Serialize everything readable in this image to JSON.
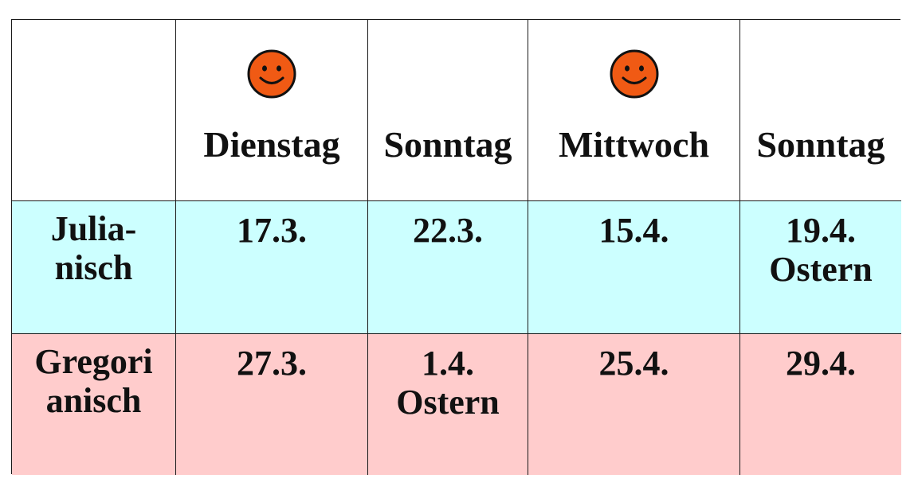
{
  "colors": {
    "julian_row": "#ccffff",
    "gregorian_row": "#ffcccc",
    "smiley_face": "#f05a14",
    "grid_lines": "#1a1a1a"
  },
  "header": {
    "columns": [
      {
        "day": "Dienstag",
        "icon": "smiley-icon"
      },
      {
        "day": "Sonntag",
        "icon": ""
      },
      {
        "day": "Mittwoch",
        "icon": "smiley-icon"
      },
      {
        "day": "Sonntag",
        "icon": ""
      }
    ]
  },
  "rows": {
    "julian": {
      "label_line1": "Julia-",
      "label_line2": "nisch",
      "cells": [
        {
          "date": "17.3.",
          "note": ""
        },
        {
          "date": "22.3.",
          "note": ""
        },
        {
          "date": "15.4.",
          "note": ""
        },
        {
          "date": "19.4.",
          "note": "Ostern"
        }
      ]
    },
    "gregorian": {
      "label_line1": "Gregori",
      "label_line2": "anisch",
      "cells": [
        {
          "date": "27.3.",
          "note": ""
        },
        {
          "date": "1.4.",
          "note": "Ostern"
        },
        {
          "date": "25.4.",
          "note": ""
        },
        {
          "date": "29.4.",
          "note": ""
        }
      ]
    }
  }
}
